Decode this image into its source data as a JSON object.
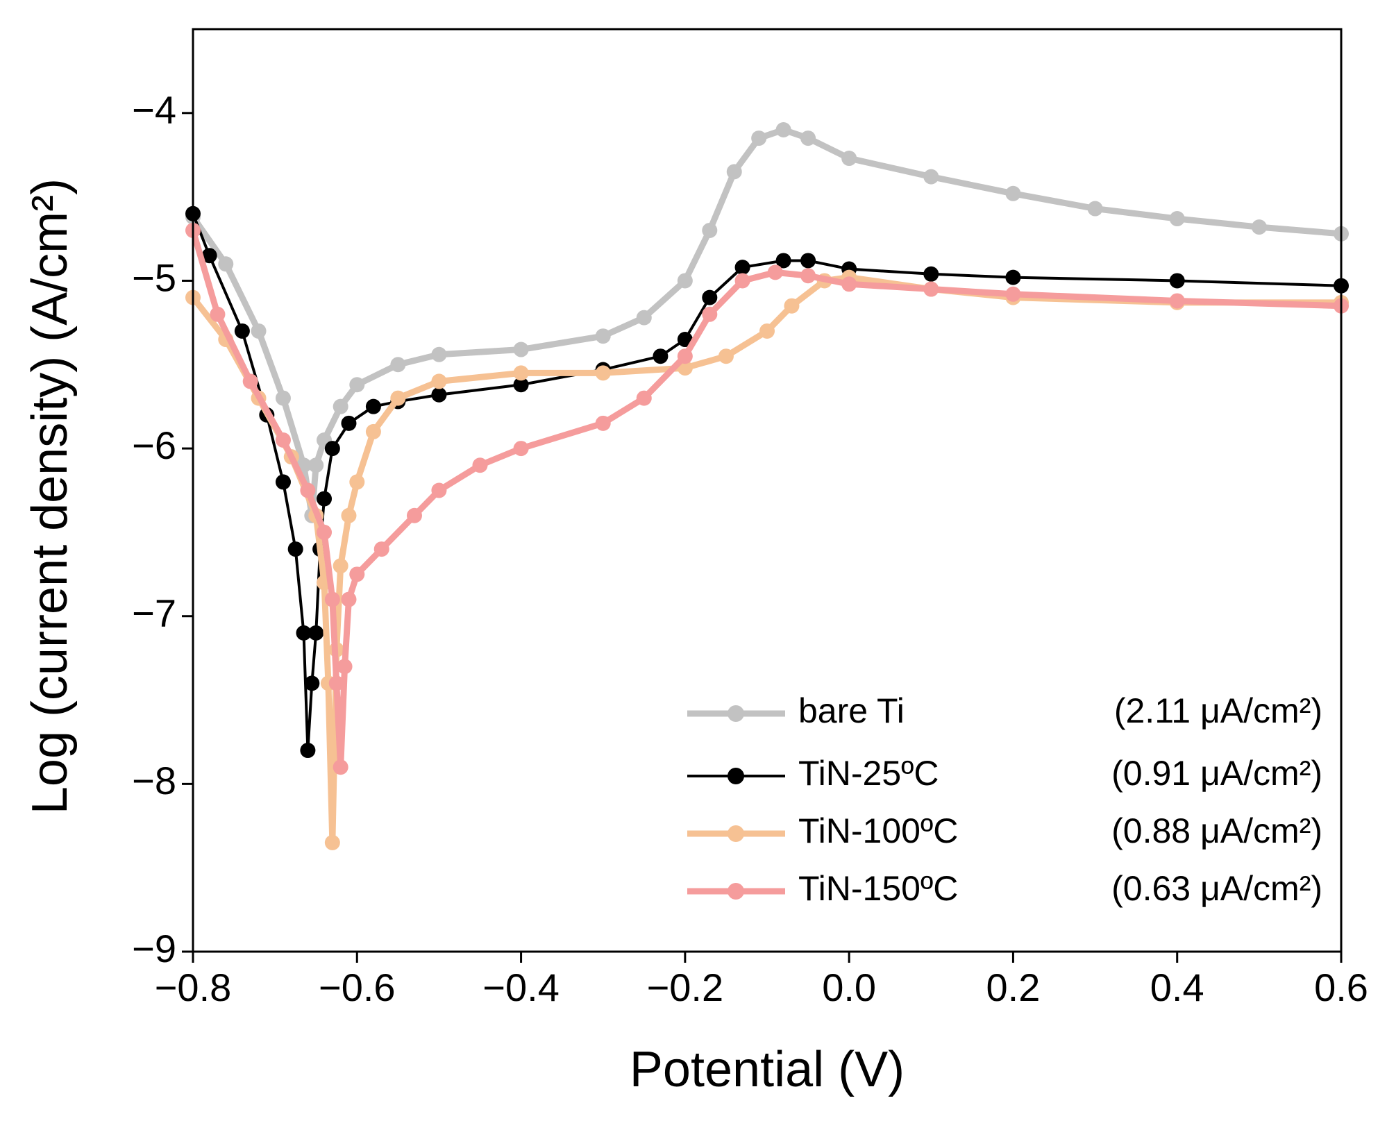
{
  "chart_data": {
    "type": "line",
    "xlabel": "Potential (V)",
    "ylabel": "Log (current density) (A/cm²)",
    "xlim": [
      -0.8,
      0.6
    ],
    "ylim": [
      -9,
      -3.5
    ],
    "xticks": [
      {
        "value": -0.8,
        "label": "−0.8"
      },
      {
        "value": -0.6,
        "label": "−0.6"
      },
      {
        "value": -0.4,
        "label": "−0.4"
      },
      {
        "value": -0.2,
        "label": "−0.2"
      },
      {
        "value": 0,
        "label": "0.0"
      },
      {
        "value": 0.2,
        "label": "0.2"
      },
      {
        "value": 0.4,
        "label": "0.4"
      },
      {
        "value": 0.6,
        "label": "0.6"
      }
    ],
    "yticks": [
      {
        "value": -9,
        "label": "−9"
      },
      {
        "value": -8,
        "label": "−8"
      },
      {
        "value": -7,
        "label": "−7"
      },
      {
        "value": -6,
        "label": "−6"
      },
      {
        "value": -5,
        "label": "−5"
      },
      {
        "value": -4,
        "label": "−4"
      }
    ],
    "legend": "lower right",
    "series": [
      {
        "name": "bare Ti",
        "note": "(2.11 μA/cm²)",
        "color": "#c2c2c2",
        "x": [
          -0.8,
          -0.76,
          -0.72,
          -0.69,
          -0.665,
          -0.655,
          -0.65,
          -0.64,
          -0.62,
          -0.6,
          -0.55,
          -0.5,
          -0.4,
          -0.3,
          -0.25,
          -0.2,
          -0.17,
          -0.14,
          -0.11,
          -0.08,
          -0.05,
          0,
          0.1,
          0.2,
          0.3,
          0.4,
          0.5,
          0.6
        ],
        "values": [
          -4.62,
          -4.9,
          -5.3,
          -5.7,
          -6.1,
          -6.4,
          -6.1,
          -5.95,
          -5.75,
          -5.62,
          -5.5,
          -5.44,
          -5.41,
          -5.33,
          -5.22,
          -5.0,
          -4.7,
          -4.35,
          -4.15,
          -4.1,
          -4.15,
          -4.27,
          -4.38,
          -4.48,
          -4.57,
          -4.63,
          -4.68,
          -4.72
        ]
      },
      {
        "name": "TiN-25ºC",
        "note": "(0.91 μA/cm²)",
        "color": "#000000",
        "x": [
          -0.8,
          -0.78,
          -0.74,
          -0.71,
          -0.69,
          -0.675,
          -0.665,
          -0.66,
          -0.655,
          -0.65,
          -0.645,
          -0.64,
          -0.63,
          -0.61,
          -0.58,
          -0.55,
          -0.5,
          -0.4,
          -0.3,
          -0.23,
          -0.2,
          -0.17,
          -0.13,
          -0.08,
          -0.05,
          0,
          0.1,
          0.2,
          0.4,
          0.6
        ],
        "values": [
          -4.6,
          -4.85,
          -5.3,
          -5.8,
          -6.2,
          -6.6,
          -7.1,
          -7.8,
          -7.4,
          -7.1,
          -6.6,
          -6.3,
          -6.0,
          -5.85,
          -5.75,
          -5.72,
          -5.68,
          -5.62,
          -5.53,
          -5.45,
          -5.35,
          -5.1,
          -4.92,
          -4.88,
          -4.88,
          -4.93,
          -4.96,
          -4.98,
          -5.0,
          -5.03
        ]
      },
      {
        "name": "TiN-100ºC",
        "note": "(0.88 μA/cm²)",
        "color": "#f6c193",
        "x": [
          -0.8,
          -0.76,
          -0.72,
          -0.68,
          -0.65,
          -0.64,
          -0.635,
          -0.63,
          -0.625,
          -0.62,
          -0.61,
          -0.6,
          -0.58,
          -0.55,
          -0.5,
          -0.4,
          -0.3,
          -0.2,
          -0.15,
          -0.1,
          -0.07,
          -0.03,
          0,
          0.1,
          0.2,
          0.4,
          0.6
        ],
        "values": [
          -5.1,
          -5.35,
          -5.7,
          -6.05,
          -6.4,
          -6.8,
          -7.4,
          -8.35,
          -7.2,
          -6.7,
          -6.4,
          -6.2,
          -5.9,
          -5.7,
          -5.6,
          -5.55,
          -5.55,
          -5.52,
          -5.45,
          -5.3,
          -5.15,
          -5.0,
          -4.98,
          -5.05,
          -5.1,
          -5.13,
          -5.13
        ]
      },
      {
        "name": "TiN-150ºC",
        "note": "(0.63 μA/cm²)",
        "color": "#f59c9c",
        "x": [
          -0.8,
          -0.77,
          -0.73,
          -0.69,
          -0.66,
          -0.64,
          -0.63,
          -0.625,
          -0.62,
          -0.615,
          -0.61,
          -0.6,
          -0.57,
          -0.53,
          -0.5,
          -0.45,
          -0.4,
          -0.3,
          -0.25,
          -0.2,
          -0.17,
          -0.13,
          -0.09,
          -0.05,
          0,
          0.1,
          0.2,
          0.4,
          0.6
        ],
        "values": [
          -4.7,
          -5.2,
          -5.6,
          -5.95,
          -6.25,
          -6.5,
          -6.9,
          -7.4,
          -7.9,
          -7.3,
          -6.9,
          -6.75,
          -6.6,
          -6.4,
          -6.25,
          -6.1,
          -6.0,
          -5.85,
          -5.7,
          -5.45,
          -5.2,
          -5.0,
          -4.95,
          -4.97,
          -5.02,
          -5.05,
          -5.08,
          -5.12,
          -5.15
        ]
      }
    ]
  }
}
